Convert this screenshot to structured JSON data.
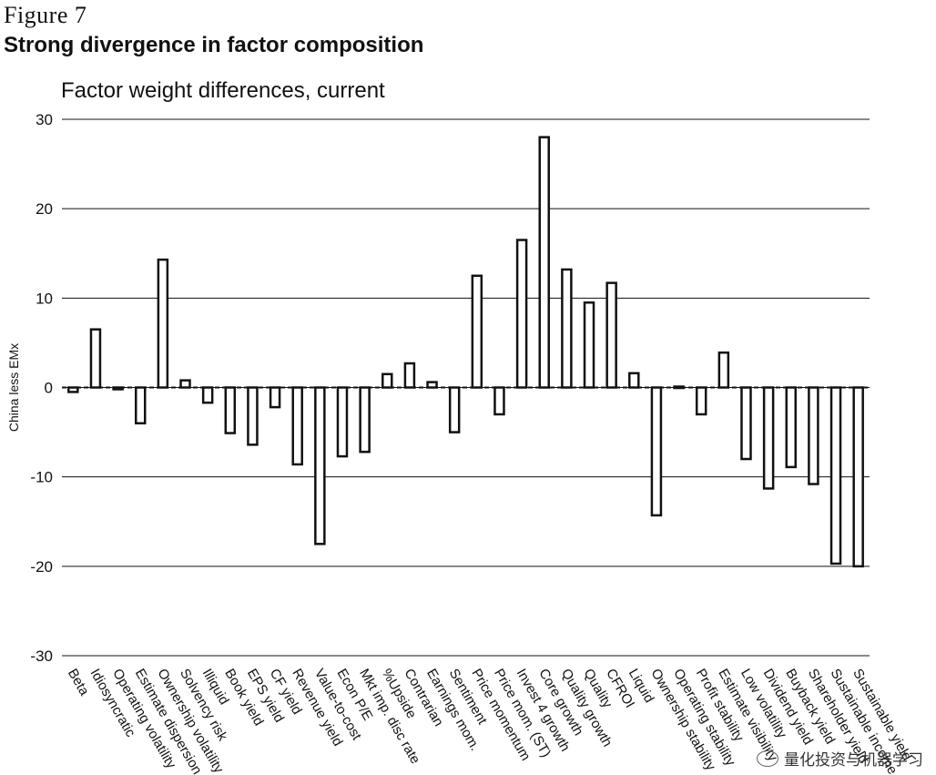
{
  "figure": {
    "label": "Figure 7",
    "title": "Strong divergence in factor composition",
    "subtitle": "Factor weight differences, current"
  },
  "chart_data": {
    "type": "bar",
    "ylabel": "China less EMx",
    "ylim": [
      -30,
      30
    ],
    "yticks": [
      30,
      20,
      10,
      0,
      -10,
      -20,
      -30
    ],
    "grid": true,
    "categories": [
      "Beta",
      "Idiosyncratic",
      "Operating volatility",
      "Estimate dispersion",
      "Ownership volatility",
      "Solvency risk",
      "Illiquid",
      "Book yield",
      "EPS yield",
      "CF yield",
      "Revenue yield",
      "Value-to-cost",
      "Econ P/E",
      "Mkt imp. disc rate",
      "%Upside",
      "Contrarian",
      "Earnings mom.",
      "Sentiment",
      "Price momentum",
      "Price mom. (ST)",
      "Invest 4 growth",
      "Core growth",
      "Quality growth",
      "Quality",
      "CFROI",
      "Liquid",
      "Ownership stability",
      "Operating stability",
      "Profit stability",
      "Estimate visibility",
      "Low volatility",
      "Dividend yield",
      "Buyback yield",
      "Shareholder yield",
      "Sustainable income",
      "Sustainable yield"
    ],
    "values": [
      -0.5,
      6.5,
      -0.2,
      -4.0,
      14.3,
      0.8,
      -1.7,
      -5.1,
      -6.4,
      -2.2,
      -8.6,
      -17.5,
      -7.7,
      -7.2,
      1.5,
      2.7,
      0.6,
      -5.0,
      12.5,
      -3.0,
      16.5,
      28.0,
      13.2,
      9.5,
      11.7,
      1.6,
      -14.3,
      0.1,
      -3.0,
      3.9,
      -8.0,
      -11.3,
      -8.9,
      -10.8,
      -19.7,
      -20.0
    ]
  },
  "watermark": {
    "text": "量化投资与机器学习"
  }
}
